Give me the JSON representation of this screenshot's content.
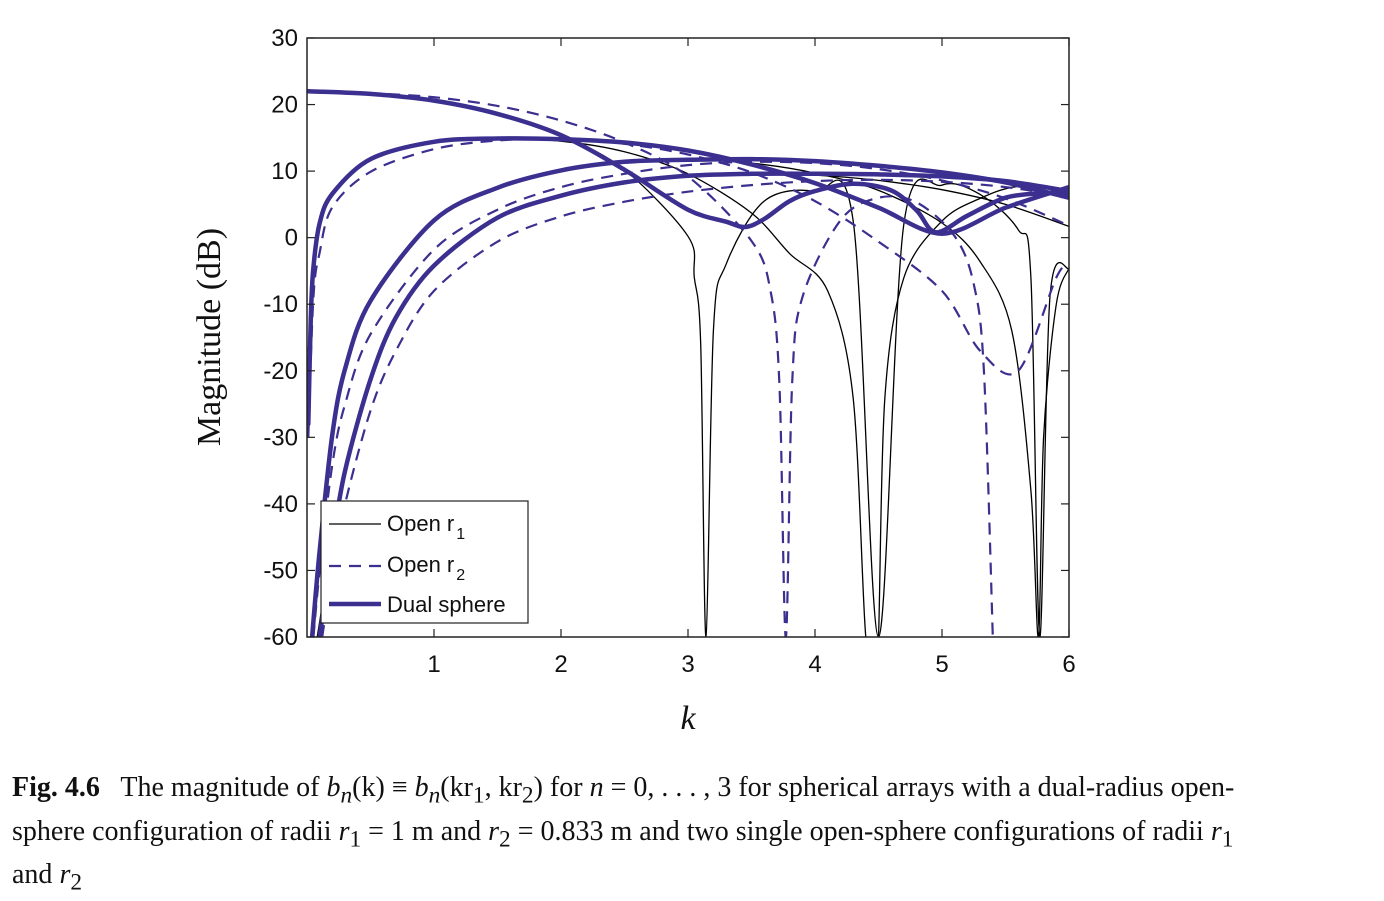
{
  "chart_data": {
    "type": "line",
    "xlabel": "k",
    "ylabel": "Magnitude (dB)",
    "xlim": [
      0,
      6
    ],
    "ylim": [
      -60,
      30
    ],
    "x_ticks": [
      1,
      2,
      3,
      4,
      5,
      6
    ],
    "y_ticks": [
      30,
      20,
      10,
      0,
      -10,
      -20,
      -30,
      -40,
      -50,
      -60
    ],
    "grid": false,
    "legend_position": "bottom-left",
    "legend": [
      {
        "label": "Open r",
        "subscript": "1",
        "style": "thin-solid"
      },
      {
        "label": "Open r",
        "subscript": "2",
        "style": "dashed"
      },
      {
        "label": "Dual sphere",
        "subscript": "",
        "style": "thick-solid"
      }
    ],
    "colors": {
      "open_r1": "#000000",
      "open_r2": "#3b2f8f",
      "dual": "#3b2f8f"
    },
    "series": [
      {
        "style": "thin-solid",
        "n": 0,
        "x": [
          0.01,
          0.5,
          1,
          1.5,
          2,
          2.5,
          3,
          3.05,
          3.1,
          3.1416,
          3.2,
          3.3,
          3.6,
          4,
          4.3,
          4.5,
          4.7,
          5,
          5.3,
          5.6,
          5.7,
          5.77,
          5.85,
          6
        ],
        "y": [
          22,
          21.6,
          20.6,
          18.6,
          15.4,
          10.2,
          0.2,
          -6,
          -16,
          -60,
          -14,
          -4,
          5.5,
          6.9,
          2.6,
          -60,
          2.1,
          7.9,
          6.5,
          1.2,
          -6,
          -60,
          -9,
          -4.6
        ]
      },
      {
        "style": "thin-solid",
        "n": 1,
        "x": [
          0.01,
          0.05,
          0.1,
          0.2,
          0.5,
          1,
          1.5,
          2,
          2.5,
          3,
          3.5,
          3.8,
          4.1,
          4.3,
          4.4,
          4.47,
          4.5,
          4.55,
          4.7,
          5,
          5.3,
          5.6,
          6
        ],
        "y": [
          -17,
          -5,
          2.2,
          6.6,
          11.8,
          14.4,
          14.9,
          14.5,
          12.9,
          9.6,
          3.7,
          -2.4,
          -8,
          -24,
          -60,
          -60,
          -60,
          -24,
          -6,
          2.5,
          5.9,
          7.7,
          7.3
        ]
      },
      {
        "style": "thin-solid",
        "n": 2,
        "x": [
          0.05,
          0.1,
          0.2,
          0.3,
          0.5,
          1,
          1.5,
          2,
          2.5,
          3,
          3.5,
          4,
          4.5,
          5,
          5.3,
          5.55,
          5.7,
          5.76,
          5.8,
          5.9,
          6
        ],
        "y": [
          -60,
          -47,
          -29.5,
          -19.7,
          -9.5,
          2.6,
          7.5,
          10.1,
          11.4,
          11.7,
          11.2,
          9.7,
          7.1,
          2.2,
          -3.6,
          -14,
          -38,
          -60,
          -30,
          -10,
          -4.6
        ]
      },
      {
        "style": "thin-solid",
        "n": 3,
        "x": [
          0.08,
          0.2,
          0.3,
          0.5,
          0.7,
          1,
          1.5,
          2,
          2.5,
          3,
          3.5,
          4,
          4.5,
          5,
          5.5,
          6
        ],
        "y": [
          -60,
          -46,
          -35,
          -21.3,
          -12,
          -4.2,
          3,
          6.3,
          8.3,
          9.3,
          9.6,
          9.4,
          8.6,
          7.2,
          5,
          1.7
        ]
      },
      {
        "style": "dashed",
        "n": 0,
        "x": [
          0.01,
          0.5,
          1,
          1.5,
          2,
          2.5,
          3,
          3.5,
          3.65,
          3.72,
          3.77,
          3.82,
          3.9,
          4.2,
          4.5,
          4.8,
          5.1,
          5.25,
          5.33,
          5.4
        ],
        "y": [
          22,
          21.7,
          21.1,
          19.8,
          17.6,
          14.3,
          9.2,
          -0.5,
          -8,
          -22,
          -60,
          -22,
          -9,
          2.6,
          6,
          5.3,
          0.2,
          -7,
          -20,
          -60
        ]
      },
      {
        "style": "dashed",
        "n": 1,
        "x": [
          0.01,
          0.05,
          0.1,
          0.2,
          0.5,
          1,
          1.5,
          2,
          2.5,
          3,
          3.5,
          4,
          4.5,
          5,
          5.3,
          5.6,
          5.9,
          6
        ],
        "y": [
          -30,
          -9,
          -2.2,
          4.6,
          9.9,
          13.3,
          14.6,
          14.8,
          14.1,
          12.5,
          9.8,
          5.5,
          -0.6,
          -8,
          -17,
          -20,
          -6,
          -4
        ]
      },
      {
        "style": "dashed",
        "n": 2,
        "x": [
          0.05,
          0.1,
          0.2,
          0.3,
          0.5,
          1,
          1.5,
          2,
          2.5,
          3,
          3.5,
          4,
          4.5,
          5,
          5.5,
          6
        ],
        "y": [
          -60,
          -50,
          -34,
          -25,
          -14.5,
          -1.8,
          4.2,
          7.6,
          9.6,
          10.9,
          11.4,
          11.2,
          10.3,
          8.6,
          5.9,
          1.8
        ]
      },
      {
        "style": "dashed",
        "n": 3,
        "x": [
          0.12,
          0.2,
          0.3,
          0.5,
          0.7,
          1,
          1.5,
          2,
          2.5,
          3,
          3.5,
          4,
          4.5,
          5,
          5.5,
          6
        ],
        "y": [
          -60,
          -50,
          -40,
          -26,
          -17,
          -8,
          -0.6,
          3.2,
          5.4,
          6.9,
          7.9,
          8.5,
          8.7,
          8.4,
          7.6,
          6.2
        ]
      },
      {
        "style": "thick-solid",
        "n": 0,
        "x": [
          0.01,
          0.5,
          1,
          1.5,
          2,
          2.5,
          3,
          3.3,
          3.45,
          3.6,
          3.8,
          4,
          4.3,
          4.6,
          4.8,
          4.95,
          5.2,
          5.5,
          5.8,
          6
        ],
        "y": [
          22,
          21.6,
          20.6,
          18.6,
          15.4,
          10.2,
          4.2,
          2.4,
          1.6,
          2.8,
          5.5,
          7,
          8.1,
          7.1,
          4.1,
          0.8,
          3.3,
          6,
          6.7,
          6.6
        ]
      },
      {
        "style": "thick-solid",
        "n": 1,
        "x": [
          0.01,
          0.03,
          0.05,
          0.1,
          0.2,
          0.5,
          1,
          1.5,
          2,
          2.5,
          3,
          3.5,
          4,
          4.5,
          5,
          5.5,
          6
        ],
        "y": [
          -28,
          -12,
          -4.5,
          2.2,
          6.6,
          11.8,
          14.4,
          14.9,
          14.8,
          14.3,
          13.1,
          11,
          8.2,
          4.5,
          0.6,
          4.5,
          7.6
        ]
      },
      {
        "style": "thick-solid",
        "n": 2,
        "x": [
          0.04,
          0.1,
          0.2,
          0.3,
          0.5,
          1,
          1.5,
          2,
          2.5,
          3,
          3.5,
          4,
          4.5,
          5,
          5.5,
          6
        ],
        "y": [
          -60,
          -47,
          -29.5,
          -19.7,
          -9.5,
          2.6,
          7.5,
          10.1,
          11.4,
          11.7,
          11.8,
          11.5,
          10.8,
          9.8,
          8.3,
          6
        ]
      },
      {
        "style": "thick-solid",
        "n": 3,
        "x": [
          0.1,
          0.2,
          0.3,
          0.5,
          0.7,
          1,
          1.5,
          2,
          2.5,
          3,
          3.5,
          4,
          4.5,
          5,
          5.5,
          6
        ],
        "y": [
          -60,
          -46,
          -35,
          -21.3,
          -12,
          -4.2,
          3,
          6.3,
          8.3,
          9.3,
          9.6,
          9.6,
          9.5,
          9.2,
          8.5,
          7
        ]
      }
    ]
  },
  "caption": {
    "fig_number": "Fig. 4.6",
    "t1": "The magnitude of",
    "bn_k": "b",
    "sub_n": "n",
    "arg_k": "(k)",
    "equiv": " ≡ ",
    "arg_kr": "(kr",
    "sub1": "1",
    "comma_kr": ", kr",
    "sub2": "2",
    "close": ")",
    "t_for": " for ",
    "n_var": "n",
    "t_range": " = 0, . . . , 3 for spherical arrays with a dual-radius open-sphere configuration of radii ",
    "r": "r",
    "t_r1val": " = 1 m and ",
    "t_r2val": " = 0.833 m and two single open-sphere configurations of radii ",
    "t_and": " and "
  }
}
